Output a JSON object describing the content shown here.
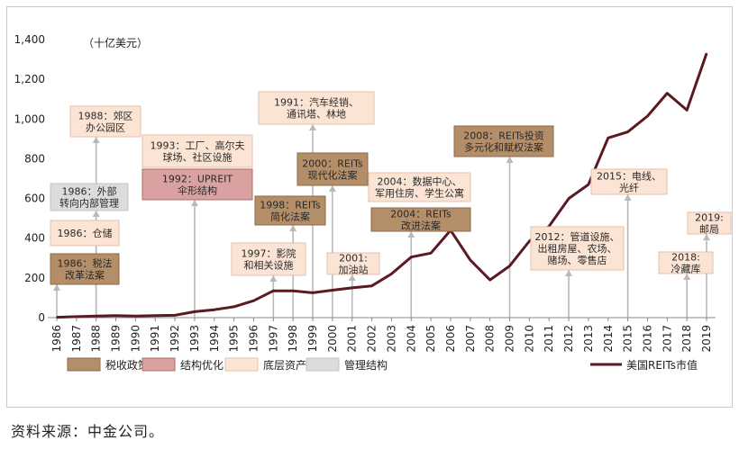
{
  "chart_data": {
    "type": "line",
    "unit_label": "（十亿美元）",
    "ylim": [
      0,
      1400
    ],
    "y_ticks": [
      "0",
      "200",
      "400",
      "600",
      "800",
      "1,000",
      "1,200",
      "1,400"
    ],
    "y_tick_values": [
      0,
      200,
      400,
      600,
      800,
      1000,
      1200,
      1400
    ],
    "years": [
      "1986",
      "1987",
      "1988",
      "1989",
      "1990",
      "1991",
      "1992",
      "1993",
      "1994",
      "1995",
      "1996",
      "1997",
      "1998",
      "1999",
      "2000",
      "2001",
      "2002",
      "2003",
      "2004",
      "2005",
      "2006",
      "2007",
      "2008",
      "2009",
      "2010",
      "2011",
      "2012",
      "2013",
      "2014",
      "2015",
      "2016",
      "2017",
      "2018",
      "2019"
    ],
    "series": [
      {
        "name": "美国REITs市值",
        "color": "#5b1a22",
        "values": [
          2,
          5,
          8,
          10,
          8,
          10,
          12,
          30,
          40,
          55,
          85,
          135,
          135,
          125,
          138,
          150,
          160,
          220,
          305,
          325,
          440,
          290,
          190,
          260,
          385,
          460,
          600,
          670,
          905,
          935,
          1015,
          1130,
          1045,
          1330
        ]
      }
    ],
    "categories_legend": [
      {
        "label": "税收政策",
        "fill": "#b38e68",
        "stroke": "#8c6a48"
      },
      {
        "label": "结构优化",
        "fill": "#daa1a1",
        "stroke": "#b06a6a"
      },
      {
        "label": "底层资产",
        "fill": "#fbe4d4",
        "stroke": "#e3c2ad"
      },
      {
        "label": "管理结构",
        "fill": "#dcdcdc",
        "stroke": "#c4c4c4"
      }
    ],
    "annotations": [
      {
        "lines": [
          "1986：外部",
          "转向内部管理"
        ],
        "category": "管理结构"
      },
      {
        "lines": [
          "1986：仓储"
        ],
        "category": "底层资产"
      },
      {
        "lines": [
          "1986：税法",
          "改革法案"
        ],
        "category": "税收政策"
      },
      {
        "lines": [
          "1988：郊区",
          "办公园区"
        ],
        "category": "底层资产"
      },
      {
        "lines": [
          "1993：工厂、高尔夫",
          "球场、社区设施"
        ],
        "category": "底层资产"
      },
      {
        "lines": [
          "1992：UPREIT",
          "伞形结构"
        ],
        "category": "结构优化"
      },
      {
        "lines": [
          "1991：汽车经销、",
          "通讯塔、林地"
        ],
        "category": "底层资产"
      },
      {
        "lines": [
          "2000：REITs",
          "现代化法案"
        ],
        "category": "税收政策"
      },
      {
        "lines": [
          "1998：REITs",
          "简化法案"
        ],
        "category": "税收政策"
      },
      {
        "lines": [
          "1997：影院",
          "和相关设施"
        ],
        "category": "底层资产"
      },
      {
        "lines": [
          "2001:",
          "加油站"
        ],
        "category": "底层资产"
      },
      {
        "lines": [
          "2004：数据中心、",
          "军用住房、学生公寓"
        ],
        "category": "底层资产"
      },
      {
        "lines": [
          "2004：REITs",
          "改进法案"
        ],
        "category": "税收政策"
      },
      {
        "lines": [
          "2008：REITs投资",
          "多元化和赋权法案"
        ],
        "category": "税收政策"
      },
      {
        "lines": [
          "2012：管道设施、",
          "出租房屋、农场、",
          "赌场、零售店"
        ],
        "category": "底层资产"
      },
      {
        "lines": [
          "2015：电线、",
          "光纤"
        ],
        "category": "底层资产"
      },
      {
        "lines": [
          "2018:",
          "冷藏库"
        ],
        "category": "底层资产"
      },
      {
        "lines": [
          "2019:",
          "邮局"
        ],
        "category": "底层资产"
      }
    ]
  },
  "source_text": "资料来源：中金公司。"
}
